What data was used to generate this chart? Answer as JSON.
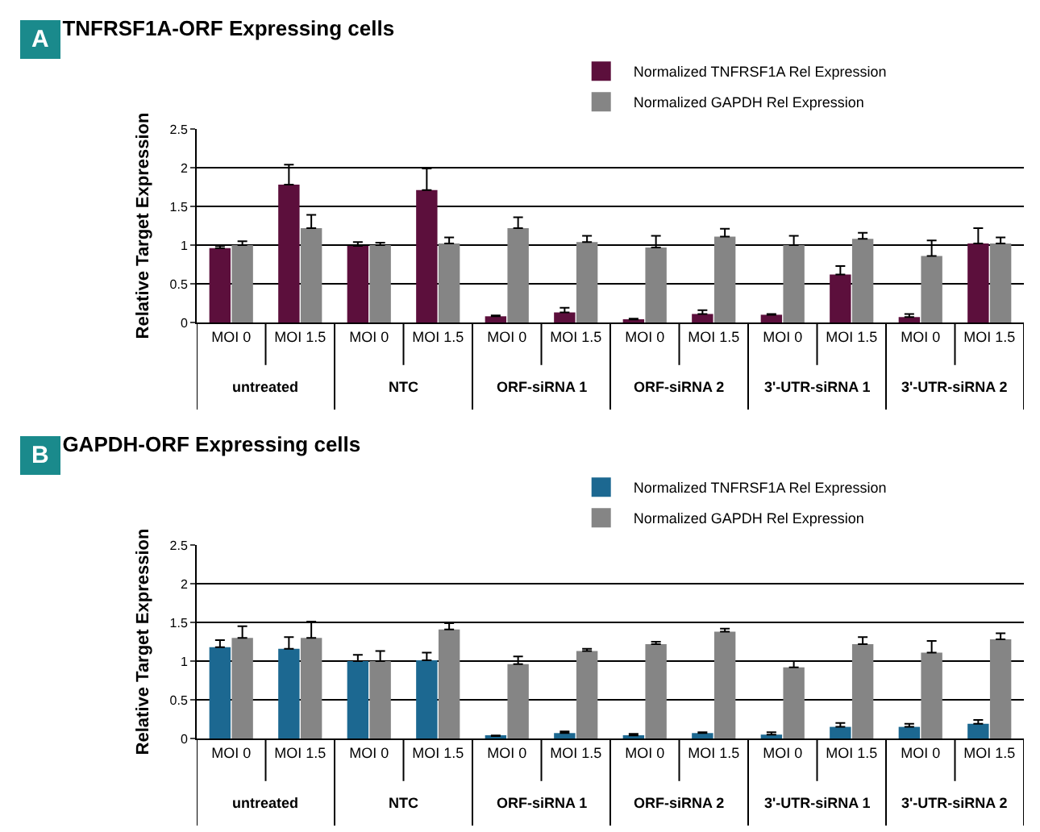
{
  "chart_data": [
    {
      "type": "bar",
      "title": "TNFRSF1A-ORF Expressing cells",
      "ylabel": "Relative Target Expression",
      "categories": [
        "MOI 0",
        "MOI 1.5",
        "MOI 0",
        "MOI 1.5",
        "MOI 0",
        "MOI 1.5",
        "MOI 0",
        "MOI 1.5",
        "MOI 0",
        "MOI 1.5",
        "MOI 0",
        "MOI 1.5"
      ],
      "annotations": [
        "A",
        "untreated",
        "NTC",
        "ORF-siRNA 1",
        "ORF-siRNA 2",
        "3'-UTR-siRNA 1",
        "3'-UTR-siRNA 2"
      ],
      "series": [
        {
          "name": "Normalized TNFRSF1A Rel Expression",
          "color": "#5c0f3c",
          "values": [
            0.96,
            1.78,
            0.99,
            1.71,
            0.08,
            0.13,
            0.04,
            0.11,
            0.1,
            0.62,
            0.07,
            1.02
          ],
          "errors": [
            [
              0.96,
              0.99
            ],
            [
              1.78,
              2.04
            ],
            [
              0.99,
              1.04
            ],
            [
              1.71,
              1.99
            ],
            [
              0.08,
              0.09
            ],
            [
              0.13,
              0.19
            ],
            [
              0.04,
              0.05
            ],
            [
              0.11,
              0.16
            ],
            [
              0.1,
              0.11
            ],
            [
              0.62,
              0.73
            ],
            [
              0.07,
              0.11
            ],
            [
              1.02,
              1.22
            ]
          ]
        },
        {
          "name": "Normalized GAPDH Rel Expression",
          "color": "#858585",
          "values": [
            1.0,
            1.22,
            1.0,
            1.02,
            1.22,
            1.04,
            0.97,
            1.11,
            1.0,
            1.08,
            0.86,
            1.02
          ],
          "errors": [
            [
              1.0,
              1.05
            ],
            [
              1.22,
              1.39
            ],
            [
              1.0,
              1.03
            ],
            [
              1.02,
              1.1
            ],
            [
              1.22,
              1.36
            ],
            [
              1.04,
              1.12
            ],
            [
              0.97,
              1.12
            ],
            [
              1.11,
              1.21
            ],
            [
              1.0,
              1.12
            ],
            [
              1.08,
              1.16
            ],
            [
              0.86,
              1.06
            ],
            [
              1.02,
              1.1
            ]
          ]
        }
      ],
      "ylim": [
        0,
        2.5
      ],
      "yticks": [
        0,
        0.5,
        1,
        1.5,
        2,
        2.5
      ],
      "grid": "y",
      "legend": "top right"
    },
    {
      "type": "bar",
      "title": "GAPDH-ORF Expressing cells",
      "ylabel": "Relative Target Expression",
      "categories": [
        "MOI 0",
        "MOI 1.5",
        "MOI 0",
        "MOI 1.5",
        "MOI 0",
        "MOI 1.5",
        "MOI 0",
        "MOI 1.5",
        "MOI 0",
        "MOI 1.5",
        "MOI 0",
        "MOI 1.5"
      ],
      "annotations": [
        "B",
        "untreated",
        "NTC",
        "ORF-siRNA 1",
        "ORF-siRNA 2",
        "3'-UTR-siRNA 1",
        "3'-UTR-siRNA 2"
      ],
      "series": [
        {
          "name": "Normalized TNFRSF1A Rel Expression",
          "color": "#1c6891",
          "values": [
            1.18,
            1.16,
            1.0,
            1.01,
            0.03,
            0.07,
            0.04,
            0.07,
            0.05,
            0.15,
            0.15,
            0.19
          ],
          "errors": [
            [
              1.18,
              1.27
            ],
            [
              1.16,
              1.31
            ],
            [
              1.0,
              1.08
            ],
            [
              1.01,
              1.11
            ],
            [
              0.03,
              0.04
            ],
            [
              0.07,
              0.09
            ],
            [
              0.04,
              0.06
            ],
            [
              0.07,
              0.08
            ],
            [
              0.05,
              0.08
            ],
            [
              0.15,
              0.2
            ],
            [
              0.15,
              0.19
            ],
            [
              0.19,
              0.24
            ]
          ]
        },
        {
          "name": "Normalized GAPDH Rel Expression",
          "color": "#858585",
          "values": [
            1.3,
            1.3,
            1.0,
            1.41,
            0.96,
            1.13,
            1.22,
            1.38,
            0.92,
            1.22,
            1.11,
            1.28
          ],
          "errors": [
            [
              1.3,
              1.45
            ],
            [
              1.3,
              1.51
            ],
            [
              1.0,
              1.13
            ],
            [
              1.41,
              1.49
            ],
            [
              0.96,
              1.06
            ],
            [
              1.13,
              1.16
            ],
            [
              1.22,
              1.25
            ],
            [
              1.38,
              1.42
            ],
            [
              0.92,
              1.0
            ],
            [
              1.22,
              1.31
            ],
            [
              1.11,
              1.26
            ],
            [
              1.28,
              1.36
            ]
          ]
        }
      ],
      "ylim": [
        0,
        2.5
      ],
      "yticks": [
        0,
        0.5,
        1,
        1.5,
        2,
        2.5
      ],
      "grid": "y",
      "legend": "top right"
    }
  ]
}
